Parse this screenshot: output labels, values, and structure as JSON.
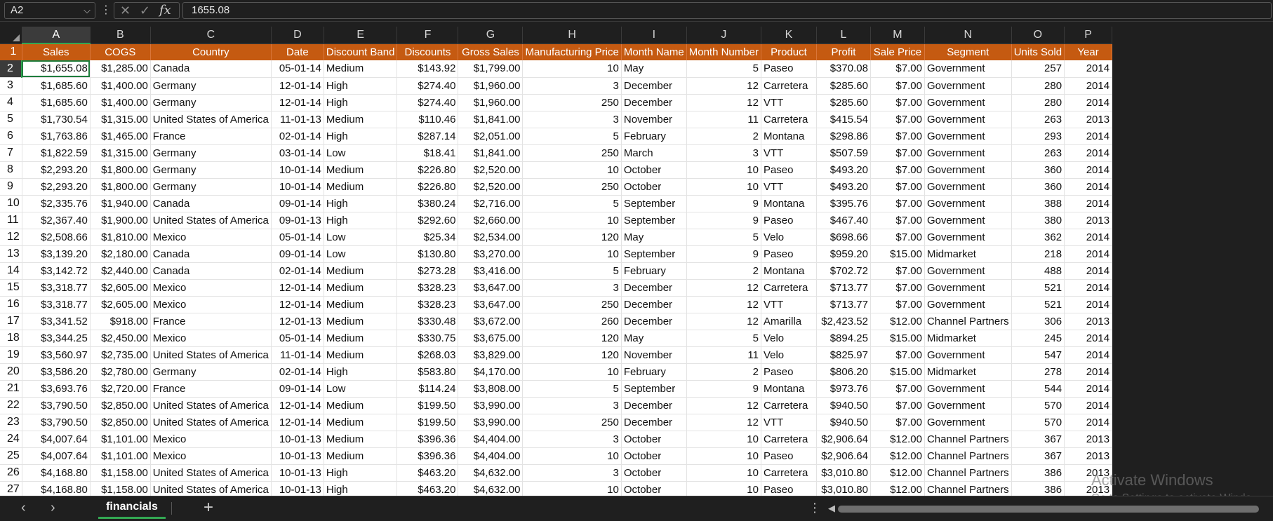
{
  "formula_bar": {
    "name_box": "A2",
    "name_box_chevron": "chevron-down-icon",
    "cancel_glyph": "✕",
    "enter_glyph": "✓",
    "fx_glyph": "fx",
    "formula_value": "1655.08"
  },
  "columns": [
    "A",
    "B",
    "C",
    "D",
    "E",
    "F",
    "G",
    "H",
    "I",
    "J",
    "K",
    "L",
    "M",
    "N",
    "O",
    "P"
  ],
  "selected_column": "A",
  "header_row_number": "1",
  "headers": [
    "Sales",
    "COGS",
    "Country",
    "Date",
    "Discount Band",
    "Discounts",
    "Gross Sales",
    "Manufacturing Price",
    "Month Name",
    "Month Number",
    "Product",
    "Profit",
    "Sale Price",
    "Segment",
    "Units Sold",
    "Year"
  ],
  "rows": [
    {
      "n": "2",
      "c": [
        "$1,655.08",
        "$1,285.00",
        "Canada",
        "05-01-14",
        "Medium",
        "$143.92",
        "$1,799.00",
        "10",
        "May",
        "5",
        "Paseo",
        "$370.08",
        "$7.00",
        "Government",
        "257",
        "2014"
      ]
    },
    {
      "n": "3",
      "c": [
        "$1,685.60",
        "$1,400.00",
        "Germany",
        "12-01-14",
        "High",
        "$274.40",
        "$1,960.00",
        "3",
        "December",
        "12",
        "Carretera",
        "$285.60",
        "$7.00",
        "Government",
        "280",
        "2014"
      ]
    },
    {
      "n": "4",
      "c": [
        "$1,685.60",
        "$1,400.00",
        "Germany",
        "12-01-14",
        "High",
        "$274.40",
        "$1,960.00",
        "250",
        "December",
        "12",
        "VTT",
        "$285.60",
        "$7.00",
        "Government",
        "280",
        "2014"
      ]
    },
    {
      "n": "5",
      "c": [
        "$1,730.54",
        "$1,315.00",
        "United States of America",
        "11-01-13",
        "Medium",
        "$110.46",
        "$1,841.00",
        "3",
        "November",
        "11",
        "Carretera",
        "$415.54",
        "$7.00",
        "Government",
        "263",
        "2013"
      ]
    },
    {
      "n": "6",
      "c": [
        "$1,763.86",
        "$1,465.00",
        "France",
        "02-01-14",
        "High",
        "$287.14",
        "$2,051.00",
        "5",
        "February",
        "2",
        "Montana",
        "$298.86",
        "$7.00",
        "Government",
        "293",
        "2014"
      ]
    },
    {
      "n": "7",
      "c": [
        "$1,822.59",
        "$1,315.00",
        "Germany",
        "03-01-14",
        "Low",
        "$18.41",
        "$1,841.00",
        "250",
        "March",
        "3",
        "VTT",
        "$507.59",
        "$7.00",
        "Government",
        "263",
        "2014"
      ]
    },
    {
      "n": "8",
      "c": [
        "$2,293.20",
        "$1,800.00",
        "Germany",
        "10-01-14",
        "Medium",
        "$226.80",
        "$2,520.00",
        "10",
        "October",
        "10",
        "Paseo",
        "$493.20",
        "$7.00",
        "Government",
        "360",
        "2014"
      ]
    },
    {
      "n": "9",
      "c": [
        "$2,293.20",
        "$1,800.00",
        "Germany",
        "10-01-14",
        "Medium",
        "$226.80",
        "$2,520.00",
        "250",
        "October",
        "10",
        "VTT",
        "$493.20",
        "$7.00",
        "Government",
        "360",
        "2014"
      ]
    },
    {
      "n": "10",
      "c": [
        "$2,335.76",
        "$1,940.00",
        "Canada",
        "09-01-14",
        "High",
        "$380.24",
        "$2,716.00",
        "5",
        "September",
        "9",
        "Montana",
        "$395.76",
        "$7.00",
        "Government",
        "388",
        "2014"
      ]
    },
    {
      "n": "11",
      "c": [
        "$2,367.40",
        "$1,900.00",
        "United States of America",
        "09-01-13",
        "High",
        "$292.60",
        "$2,660.00",
        "10",
        "September",
        "9",
        "Paseo",
        "$467.40",
        "$7.00",
        "Government",
        "380",
        "2013"
      ]
    },
    {
      "n": "12",
      "c": [
        "$2,508.66",
        "$1,810.00",
        "Mexico",
        "05-01-14",
        "Low",
        "$25.34",
        "$2,534.00",
        "120",
        "May",
        "5",
        "Velo",
        "$698.66",
        "$7.00",
        "Government",
        "362",
        "2014"
      ]
    },
    {
      "n": "13",
      "c": [
        "$3,139.20",
        "$2,180.00",
        "Canada",
        "09-01-14",
        "Low",
        "$130.80",
        "$3,270.00",
        "10",
        "September",
        "9",
        "Paseo",
        "$959.20",
        "$15.00",
        "Midmarket",
        "218",
        "2014"
      ]
    },
    {
      "n": "14",
      "c": [
        "$3,142.72",
        "$2,440.00",
        "Canada",
        "02-01-14",
        "Medium",
        "$273.28",
        "$3,416.00",
        "5",
        "February",
        "2",
        "Montana",
        "$702.72",
        "$7.00",
        "Government",
        "488",
        "2014"
      ]
    },
    {
      "n": "15",
      "c": [
        "$3,318.77",
        "$2,605.00",
        "Mexico",
        "12-01-14",
        "Medium",
        "$328.23",
        "$3,647.00",
        "3",
        "December",
        "12",
        "Carretera",
        "$713.77",
        "$7.00",
        "Government",
        "521",
        "2014"
      ]
    },
    {
      "n": "16",
      "c": [
        "$3,318.77",
        "$2,605.00",
        "Mexico",
        "12-01-14",
        "Medium",
        "$328.23",
        "$3,647.00",
        "250",
        "December",
        "12",
        "VTT",
        "$713.77",
        "$7.00",
        "Government",
        "521",
        "2014"
      ]
    },
    {
      "n": "17",
      "c": [
        "$3,341.52",
        "$918.00",
        "France",
        "12-01-13",
        "Medium",
        "$330.48",
        "$3,672.00",
        "260",
        "December",
        "12",
        "Amarilla",
        "$2,423.52",
        "$12.00",
        "Channel Partners",
        "306",
        "2013"
      ]
    },
    {
      "n": "18",
      "c": [
        "$3,344.25",
        "$2,450.00",
        "Mexico",
        "05-01-14",
        "Medium",
        "$330.75",
        "$3,675.00",
        "120",
        "May",
        "5",
        "Velo",
        "$894.25",
        "$15.00",
        "Midmarket",
        "245",
        "2014"
      ]
    },
    {
      "n": "19",
      "c": [
        "$3,560.97",
        "$2,735.00",
        "United States of America",
        "11-01-14",
        "Medium",
        "$268.03",
        "$3,829.00",
        "120",
        "November",
        "11",
        "Velo",
        "$825.97",
        "$7.00",
        "Government",
        "547",
        "2014"
      ]
    },
    {
      "n": "20",
      "c": [
        "$3,586.20",
        "$2,780.00",
        "Germany",
        "02-01-14",
        "High",
        "$583.80",
        "$4,170.00",
        "10",
        "February",
        "2",
        "Paseo",
        "$806.20",
        "$15.00",
        "Midmarket",
        "278",
        "2014"
      ]
    },
    {
      "n": "21",
      "c": [
        "$3,693.76",
        "$2,720.00",
        "France",
        "09-01-14",
        "Low",
        "$114.24",
        "$3,808.00",
        "5",
        "September",
        "9",
        "Montana",
        "$973.76",
        "$7.00",
        "Government",
        "544",
        "2014"
      ]
    },
    {
      "n": "22",
      "c": [
        "$3,790.50",
        "$2,850.00",
        "United States of America",
        "12-01-14",
        "Medium",
        "$199.50",
        "$3,990.00",
        "3",
        "December",
        "12",
        "Carretera",
        "$940.50",
        "$7.00",
        "Government",
        "570",
        "2014"
      ]
    },
    {
      "n": "23",
      "c": [
        "$3,790.50",
        "$2,850.00",
        "United States of America",
        "12-01-14",
        "Medium",
        "$199.50",
        "$3,990.00",
        "250",
        "December",
        "12",
        "VTT",
        "$940.50",
        "$7.00",
        "Government",
        "570",
        "2014"
      ]
    },
    {
      "n": "24",
      "c": [
        "$4,007.64",
        "$1,101.00",
        "Mexico",
        "10-01-13",
        "Medium",
        "$396.36",
        "$4,404.00",
        "3",
        "October",
        "10",
        "Carretera",
        "$2,906.64",
        "$12.00",
        "Channel Partners",
        "367",
        "2013"
      ]
    },
    {
      "n": "25",
      "c": [
        "$4,007.64",
        "$1,101.00",
        "Mexico",
        "10-01-13",
        "Medium",
        "$396.36",
        "$4,404.00",
        "10",
        "October",
        "10",
        "Paseo",
        "$2,906.64",
        "$12.00",
        "Channel Partners",
        "367",
        "2013"
      ]
    },
    {
      "n": "26",
      "c": [
        "$4,168.80",
        "$1,158.00",
        "United States of America",
        "10-01-13",
        "High",
        "$463.20",
        "$4,632.00",
        "3",
        "October",
        "10",
        "Carretera",
        "$3,010.80",
        "$12.00",
        "Channel Partners",
        "386",
        "2013"
      ]
    },
    {
      "n": "27",
      "c": [
        "$4,168.80",
        "$1,158.00",
        "United States of America",
        "10-01-13",
        "High",
        "$463.20",
        "$4,632.00",
        "10",
        "October",
        "10",
        "Paseo",
        "$3,010.80",
        "$12.00",
        "Channel Partners",
        "386",
        "2013"
      ]
    }
  ],
  "watermark": {
    "line1": "Activate Windows",
    "line2": "Go to Settings to activate Windo"
  },
  "bottom_bar": {
    "sheet_tab": "financials",
    "nav_prev": "‹",
    "nav_next": "›",
    "add_sheet": "+",
    "more": "⋮"
  },
  "colors": {
    "header_fill": "#c55a11",
    "selection": "#1e7d3c",
    "chrome_bg": "#1f1f1f"
  }
}
